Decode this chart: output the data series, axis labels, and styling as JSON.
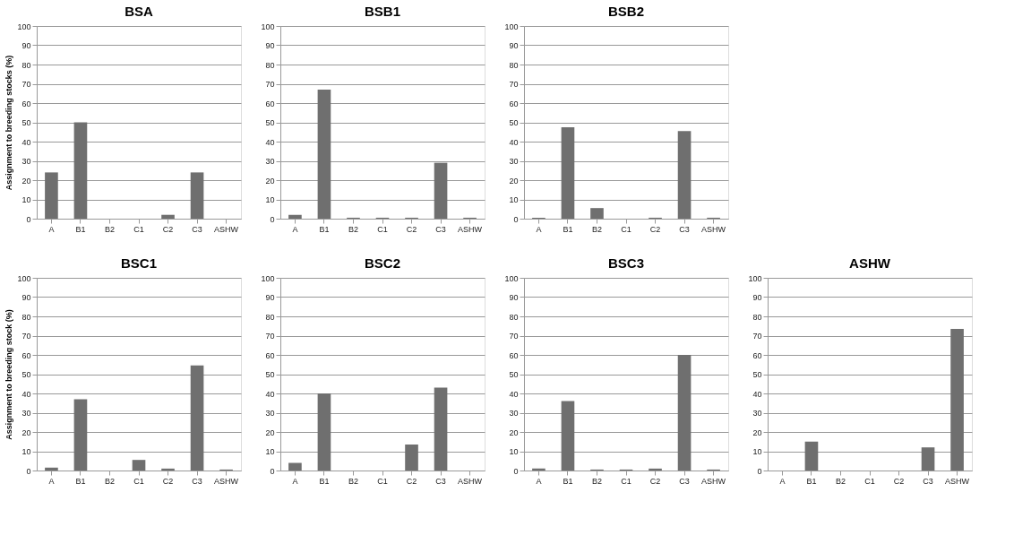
{
  "chart_data": [
    {
      "type": "bar",
      "title": "BSA",
      "ylabel": "Assignment to breeding stocks (%)",
      "categories": [
        "A",
        "B1",
        "B2",
        "C1",
        "C2",
        "C3",
        "ASHW"
      ],
      "values": [
        24,
        50,
        0,
        0,
        2,
        24,
        0
      ],
      "color": "#6f6f6f",
      "ylim": [
        0,
        100
      ],
      "yticks": [
        0,
        10,
        20,
        30,
        40,
        50,
        60,
        70,
        80,
        90,
        100
      ],
      "grid": "y"
    },
    {
      "type": "bar",
      "title": "BSB1",
      "categories": [
        "A",
        "B1",
        "B2",
        "C1",
        "C2",
        "C3",
        "ASHW"
      ],
      "values": [
        2,
        67,
        0.5,
        0.5,
        0.5,
        29,
        0.5
      ],
      "color": "#6f6f6f",
      "ylim": [
        0,
        100
      ],
      "yticks": [
        0,
        10,
        20,
        30,
        40,
        50,
        60,
        70,
        80,
        90,
        100
      ],
      "grid": "y"
    },
    {
      "type": "bar",
      "title": "BSB2",
      "categories": [
        "A",
        "B1",
        "B2",
        "C1",
        "C2",
        "C3",
        "ASHW"
      ],
      "values": [
        0.5,
        47.5,
        5.5,
        0,
        0.5,
        45.5,
        0.5
      ],
      "color": "#6f6f6f",
      "ylim": [
        0,
        100
      ],
      "yticks": [
        0,
        10,
        20,
        30,
        40,
        50,
        60,
        70,
        80,
        90,
        100
      ],
      "grid": "y"
    },
    {
      "type": "bar",
      "title": "BSC1",
      "ylabel": "Assignment to breeding stock (%)",
      "categories": [
        "A",
        "B1",
        "B2",
        "C1",
        "C2",
        "C3",
        "ASHW"
      ],
      "values": [
        1.5,
        37,
        0,
        5.5,
        1,
        54.5,
        0.5
      ],
      "color": "#6f6f6f",
      "ylim": [
        0,
        100
      ],
      "yticks": [
        0,
        10,
        20,
        30,
        40,
        50,
        60,
        70,
        80,
        90,
        100
      ],
      "grid": "y"
    },
    {
      "type": "bar",
      "title": "BSC2",
      "categories": [
        "A",
        "B1",
        "B2",
        "C1",
        "C2",
        "C3",
        "ASHW"
      ],
      "values": [
        4,
        40,
        0,
        0,
        13.5,
        43,
        0
      ],
      "color": "#6f6f6f",
      "ylim": [
        0,
        100
      ],
      "yticks": [
        0,
        10,
        20,
        30,
        40,
        50,
        60,
        70,
        80,
        90,
        100
      ],
      "grid": "y"
    },
    {
      "type": "bar",
      "title": "BSC3",
      "categories": [
        "A",
        "B1",
        "B2",
        "C1",
        "C2",
        "C3",
        "ASHW"
      ],
      "values": [
        1,
        36,
        0.5,
        0.5,
        1,
        60,
        0.5
      ],
      "color": "#6f6f6f",
      "ylim": [
        0,
        100
      ],
      "yticks": [
        0,
        10,
        20,
        30,
        40,
        50,
        60,
        70,
        80,
        90,
        100
      ],
      "grid": "y"
    },
    {
      "type": "bar",
      "title": "ASHW",
      "categories": [
        "A",
        "B1",
        "B2",
        "C1",
        "C2",
        "C3",
        "ASHW"
      ],
      "values": [
        0,
        15,
        0,
        0,
        0,
        12,
        73.5
      ],
      "color": "#6f6f6f",
      "ylim": [
        0,
        100
      ],
      "yticks": [
        0,
        10,
        20,
        30,
        40,
        50,
        60,
        70,
        80,
        90,
        100
      ],
      "grid": "y"
    }
  ]
}
